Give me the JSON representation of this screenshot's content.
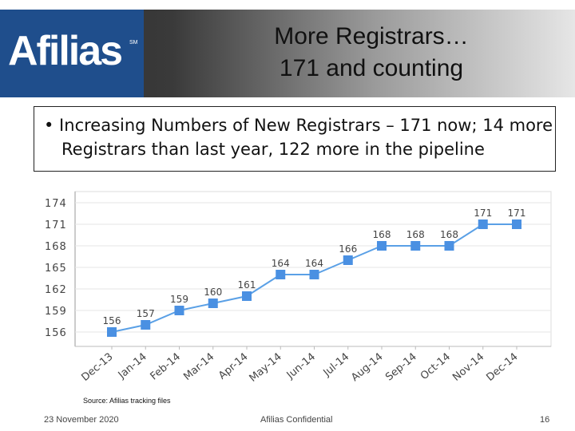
{
  "header": {
    "logo_text": "Afilias",
    "logo_mark": "SM",
    "title_line1": "More Registrars…",
    "title_line2": "171 and counting",
    "logo_color": "#1f4e8c"
  },
  "bullet": {
    "text": "• Increasing Numbers of New Registrars – 171 now; 14 more Registrars than last year, 122 more in the pipeline"
  },
  "chart_data": {
    "type": "line",
    "categories": [
      "Dec-13",
      "Jan-14",
      "Feb-14",
      "Mar-14",
      "Apr-14",
      "May-14",
      "Jun-14",
      "Jul-14",
      "Aug-14",
      "Sep-14",
      "Oct-14",
      "Nov-14",
      "Dec-14"
    ],
    "values": [
      156,
      157,
      159,
      160,
      161,
      164,
      164,
      166,
      168,
      168,
      168,
      171,
      171
    ],
    "yticks": [
      156,
      159,
      162,
      165,
      168,
      171,
      174
    ],
    "ylim": [
      156,
      174
    ],
    "title": "",
    "xlabel": "",
    "ylabel": "",
    "grid": true,
    "line_color": "#5aa0e6",
    "marker_color": "#4a90e2"
  },
  "source": "Source: Afilias tracking files",
  "footer": {
    "date": "23 November 2020",
    "confidential": "Afilias Confidential",
    "page": "16"
  }
}
